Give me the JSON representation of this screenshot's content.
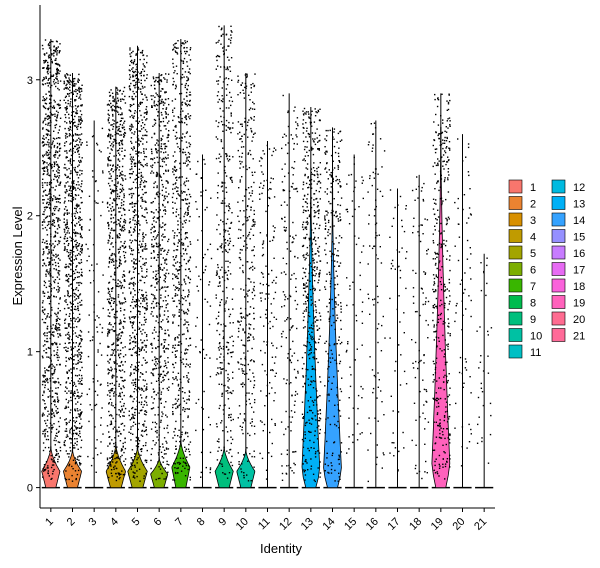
{
  "chart_data": {
    "type": "violin",
    "xlabel": "Identity",
    "ylabel": "Expression Level",
    "ylim": [
      -0.15,
      3.55
    ],
    "yticks": [
      0,
      1,
      2,
      3
    ],
    "categories": [
      "1",
      "2",
      "3",
      "4",
      "5",
      "6",
      "7",
      "8",
      "9",
      "10",
      "11",
      "12",
      "13",
      "14",
      "15",
      "16",
      "17",
      "18",
      "19",
      "20",
      "21"
    ],
    "colors": [
      "#F8766D",
      "#EA8331",
      "#D89000",
      "#C09B00",
      "#A3A500",
      "#7CAE00",
      "#39B600",
      "#00BB4E",
      "#00BF7D",
      "#00C1A3",
      "#00BFC4",
      "#00BAE0",
      "#00B0F6",
      "#35A2FF",
      "#9590FF",
      "#C77CFF",
      "#E76BF3",
      "#FA62DB",
      "#FF62BC",
      "#FF6C91",
      "#FF6A98"
    ],
    "series": [
      {
        "name": "1",
        "max": 3.3,
        "density": 0.85,
        "violin_peak": 0.12,
        "violin_height": 0.3,
        "violin_width": 0.42
      },
      {
        "name": "2",
        "max": 3.05,
        "density": 0.8,
        "violin_peak": 0.12,
        "violin_height": 0.28,
        "violin_width": 0.42
      },
      {
        "name": "3",
        "max": 2.7,
        "density": 0.08,
        "violin_peak": 0,
        "violin_height": 0,
        "violin_width": 0
      },
      {
        "name": "4",
        "max": 2.95,
        "density": 0.7,
        "violin_peak": 0.12,
        "violin_height": 0.32,
        "violin_width": 0.45
      },
      {
        "name": "5",
        "max": 3.25,
        "density": 0.7,
        "violin_peak": 0.12,
        "violin_height": 0.3,
        "violin_width": 0.45
      },
      {
        "name": "6",
        "max": 3.05,
        "density": 0.55,
        "violin_peak": 0.1,
        "violin_height": 0.22,
        "violin_width": 0.4
      },
      {
        "name": "7",
        "max": 3.3,
        "density": 0.55,
        "violin_peak": 0.15,
        "violin_height": 0.35,
        "violin_width": 0.42
      },
      {
        "name": "8",
        "max": 2.45,
        "density": 0.06,
        "violin_peak": 0,
        "violin_height": 0,
        "violin_width": 0
      },
      {
        "name": "9",
        "max": 3.4,
        "density": 0.35,
        "violin_peak": 0.12,
        "violin_height": 0.3,
        "violin_width": 0.42
      },
      {
        "name": "10",
        "max": 3.05,
        "density": 0.3,
        "violin_peak": 0.12,
        "violin_height": 0.28,
        "violin_width": 0.42
      },
      {
        "name": "11",
        "max": 2.55,
        "density": 0.12,
        "violin_peak": 0,
        "violin_height": 0,
        "violin_width": 0
      },
      {
        "name": "12",
        "max": 2.9,
        "density": 0.15,
        "violin_peak": 0,
        "violin_height": 0,
        "violin_width": 0
      },
      {
        "name": "13",
        "max": 2.8,
        "density": 0.45,
        "violin_peak": 0.12,
        "violin_height": 2.3,
        "violin_width": 0.42
      },
      {
        "name": "14",
        "max": 2.65,
        "density": 0.25,
        "violin_peak": 0.12,
        "violin_height": 2.2,
        "violin_width": 0.42
      },
      {
        "name": "15",
        "max": 2.45,
        "density": 0.06,
        "violin_peak": 0,
        "violin_height": 0,
        "violin_width": 0
      },
      {
        "name": "16",
        "max": 2.7,
        "density": 0.08,
        "violin_peak": 0,
        "violin_height": 0,
        "violin_width": 0
      },
      {
        "name": "17",
        "max": 2.2,
        "density": 0.05,
        "violin_peak": 0,
        "violin_height": 0,
        "violin_width": 0
      },
      {
        "name": "18",
        "max": 2.3,
        "density": 0.08,
        "violin_peak": 0,
        "violin_height": 0,
        "violin_width": 0
      },
      {
        "name": "19",
        "max": 2.9,
        "density": 0.35,
        "violin_peak": 0.15,
        "violin_height": 2.65,
        "violin_width": 0.42
      },
      {
        "name": "20",
        "max": 2.6,
        "density": 0.06,
        "violin_peak": 0,
        "violin_height": 0,
        "violin_width": 0
      },
      {
        "name": "21",
        "max": 1.72,
        "density": 0.03,
        "violin_peak": 0,
        "violin_height": 0,
        "violin_width": 0
      }
    ],
    "legend": {
      "position": "right",
      "columns": 2,
      "entries": [
        "1",
        "2",
        "3",
        "4",
        "5",
        "6",
        "7",
        "8",
        "9",
        "10",
        "11",
        "12",
        "13",
        "14",
        "15",
        "16",
        "17",
        "18",
        "19",
        "20",
        "21"
      ]
    },
    "grid": false
  }
}
